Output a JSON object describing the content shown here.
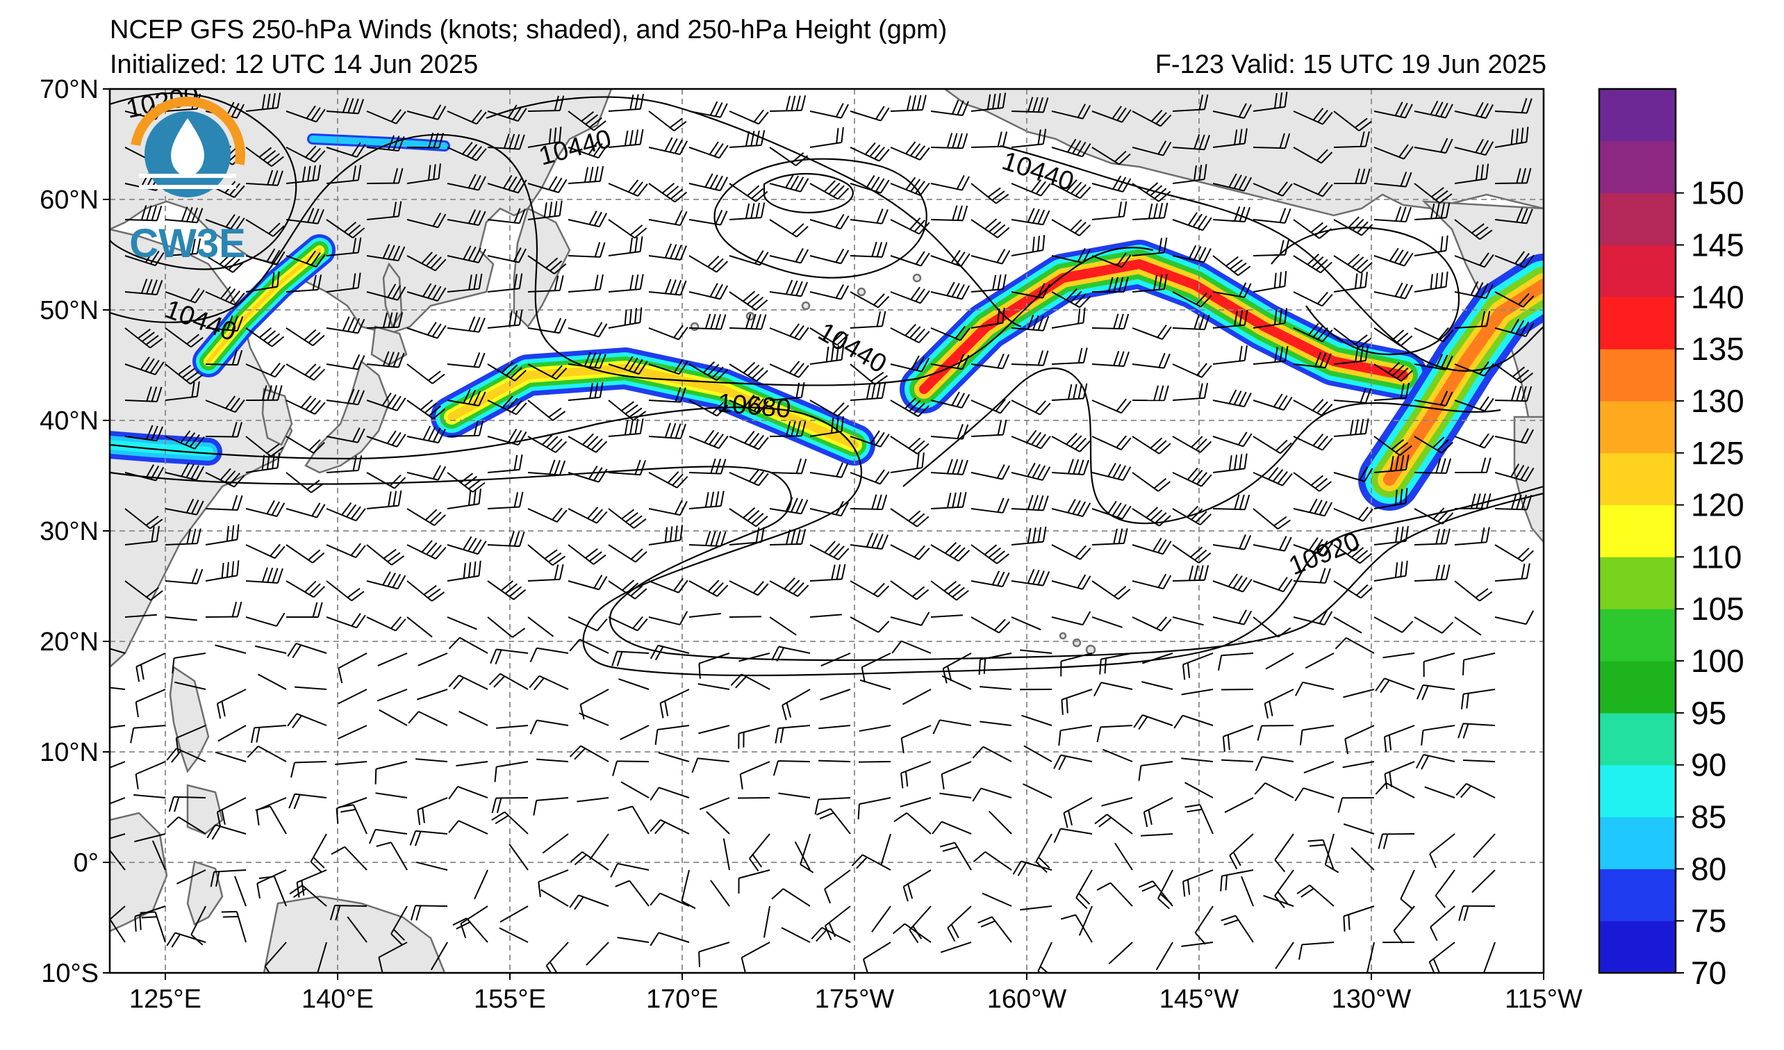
{
  "header": {
    "title": "NCEP GFS 250-hPa Winds (knots; shaded), and 250-hPa Height (gpm)",
    "initialized": "Initialized: 12 UTC 14 Jun 2025",
    "valid": "F-123  Valid: 15 UTC 19 Jun 2025"
  },
  "logo": {
    "text": "CW3E"
  },
  "map": {
    "lon_ticks": [
      "125°E",
      "140°E",
      "155°E",
      "170°E",
      "175°W",
      "160°W",
      "145°W",
      "130°W",
      "115°W"
    ],
    "lat_ticks": [
      "70°N",
      "60°N",
      "50°N",
      "40°N",
      "30°N",
      "20°N",
      "10°N",
      "0°",
      "10°S"
    ],
    "contour_labels": [
      "10200",
      "10440",
      "10440",
      "10440",
      "10440",
      "10680",
      "10920"
    ]
  },
  "colorbar": {
    "levels": [
      "70",
      "75",
      "80",
      "85",
      "90",
      "95",
      "100",
      "105",
      "110",
      "120",
      "125",
      "130",
      "135",
      "140",
      "145",
      "150"
    ],
    "colors": [
      "#1a1ad6",
      "#1f3cf0",
      "#1fc8ff",
      "#20f2f2",
      "#22e0a0",
      "#1eb41e",
      "#2dc82d",
      "#78d21e",
      "#ffff1e",
      "#ffd21e",
      "#ffaa1e",
      "#ff7d1e",
      "#ff1e1e",
      "#dc1e3c",
      "#b4285a",
      "#8c2882",
      "#6e2896"
    ]
  },
  "colors": {
    "land": "#e6e6e6",
    "coast": "#6e6e6e",
    "grid": "#888888",
    "contour": "#000000"
  }
}
